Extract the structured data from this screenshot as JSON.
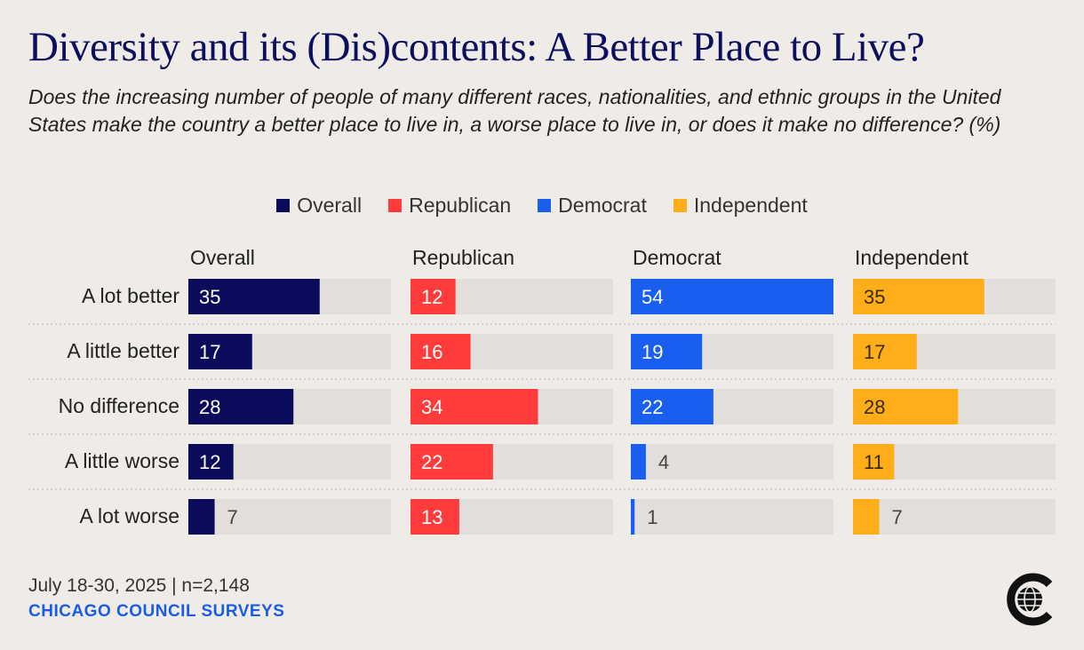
{
  "title": "Diversity and its (Dis)contents: A Better Place to Live?",
  "subtitle": "Does the increasing number of people of many different races, nationalities, and ethnic groups in the United States make the country a better place to live in, a worse place to live in, or does it make no difference? (%)",
  "footer": {
    "date_sample": "July 18-30, 2025 | n=2,148",
    "organization": "CHICAGO COUNCIL SURVEYS"
  },
  "logo": {
    "icon": "chicago-council-globe-icon"
  },
  "colors": {
    "Overall": "#0b0b5c",
    "Republican": "#ff3b3b",
    "Democrat": "#1a5ef0",
    "Independent": "#ffae1a",
    "track": "#e2dedb"
  },
  "chart_data": {
    "type": "bar",
    "orientation": "horizontal",
    "title": "Diversity and its (Dis)contents: A Better Place to Live?",
    "xlim": [
      0,
      54
    ],
    "categories": [
      "A lot better",
      "A little better",
      "No difference",
      "A little worse",
      "A lot worse"
    ],
    "series": [
      {
        "name": "Overall",
        "values": [
          35,
          17,
          28,
          12,
          7
        ]
      },
      {
        "name": "Republican",
        "values": [
          12,
          16,
          34,
          22,
          13
        ]
      },
      {
        "name": "Democrat",
        "values": [
          54,
          19,
          22,
          4,
          1
        ]
      },
      {
        "name": "Independent",
        "values": [
          35,
          17,
          28,
          11,
          7
        ]
      }
    ],
    "legend": [
      "Overall",
      "Republican",
      "Democrat",
      "Independent"
    ],
    "legend_position": "top-center"
  }
}
